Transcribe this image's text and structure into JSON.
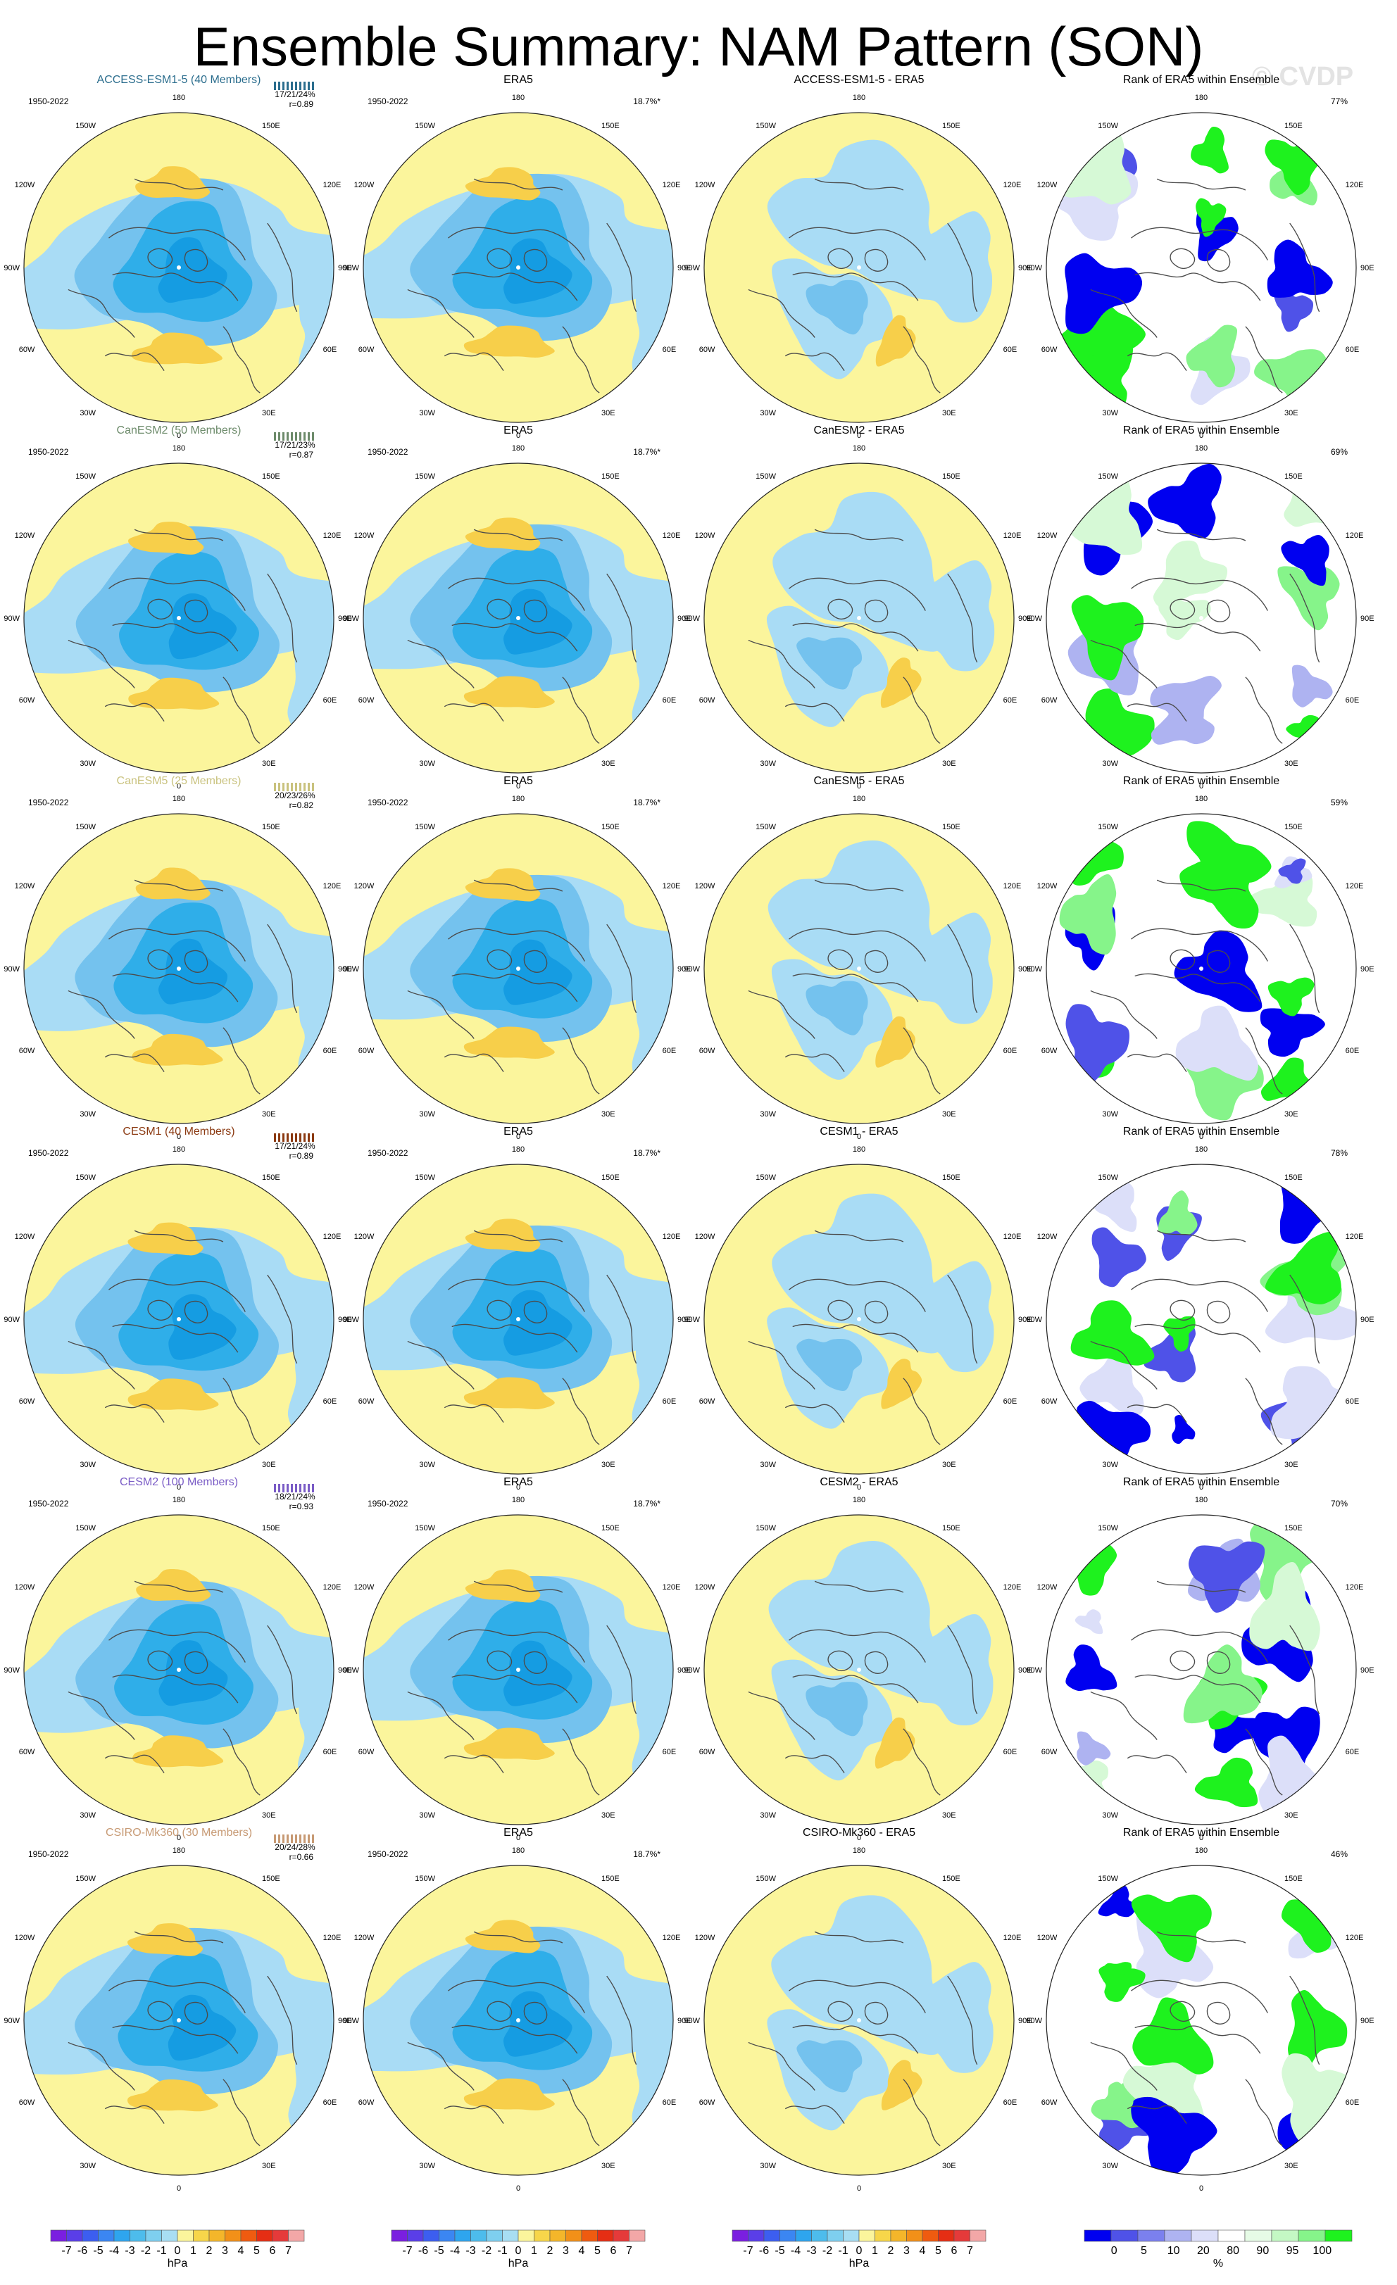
{
  "title": "Ensemble Summary: NAM Pattern (SON)",
  "watermark": "© CVDP",
  "colors": {
    "ocean_yellow": "#fbf59c",
    "neg_light": "#a9dcf5",
    "neg_mid": "#74c2ee",
    "neg_dark": "#2faee9",
    "neg_deep": "#159ce2",
    "pos_light": "#f7cf4a",
    "pos_mid": "#f4b72a",
    "coast": "#4b4b4b",
    "rank_low_dark": "#0000f0",
    "rank_low_mid": "#4f52e8",
    "rank_low_light": "#aeb3f1",
    "rank_low_faint": "#dcdff9",
    "rank_high_light": "#d6f9d6",
    "rank_high_mid": "#86f48a",
    "rank_high_dark": "#1ef21e"
  },
  "column_titles": {
    "obs": "ERA5",
    "rank": "Rank of ERA5 within Ensemble"
  },
  "period": "1950-2022",
  "obs_variance": "18.7%*",
  "longitude_labels": [
    "180",
    "150W",
    "150E",
    "120W",
    "120E",
    "90W",
    "90E",
    "60W",
    "60E",
    "30W",
    "30E",
    "0"
  ],
  "models": [
    {
      "name": "ACCESS-ESM1-5 (40 Members)",
      "diff": "ACCESS-ESM1-5 - ERA5",
      "color": "#2c6e8e",
      "stats": "17/21/24%",
      "r": "r=0.89",
      "rank_pct": "77%"
    },
    {
      "name": "CanESM2 (50 Members)",
      "diff": "CanESM2 - ERA5",
      "color": "#6d8b6b",
      "stats": "17/21/23%",
      "r": "r=0.87",
      "rank_pct": "69%"
    },
    {
      "name": "CanESM5 (25 Members)",
      "diff": "CanESM5 - ERA5",
      "color": "#c9c27e",
      "stats": "20/23/26%",
      "r": "r=0.82",
      "rank_pct": "59%"
    },
    {
      "name": "CESM1 (40 Members)",
      "diff": "CESM1 - ERA5",
      "color": "#8b3a12",
      "stats": "17/21/24%",
      "r": "r=0.89",
      "rank_pct": "78%"
    },
    {
      "name": "CESM2 (100 Members)",
      "diff": "CESM2 - ERA5",
      "color": "#7a5cc6",
      "stats": "18/21/24%",
      "r": "r=0.93",
      "rank_pct": "70%"
    },
    {
      "name": "CSIRO-Mk360 (30 Members)",
      "diff": "CSIRO-Mk360 - ERA5",
      "color": "#c79a74",
      "stats": "20/24/28%",
      "r": "r=0.66",
      "rank_pct": "46%"
    }
  ],
  "colorbar_hpa": {
    "labels": [
      "-7",
      "-6",
      "-5",
      "-4",
      "-3",
      "-2",
      "-1",
      "0",
      "1",
      "2",
      "3",
      "4",
      "5",
      "6",
      "7"
    ],
    "unit": "hPa",
    "colors": [
      "#7a1fe0",
      "#5a3ee8",
      "#3c5ef0",
      "#3b86f2",
      "#2ea5ee",
      "#4dbcec",
      "#7ecfef",
      "#a8def3",
      "#fbf59c",
      "#f7d64a",
      "#f4b62a",
      "#f29018",
      "#ef5b10",
      "#e52e14",
      "#e53a3a",
      "#f3a7a7"
    ]
  },
  "colorbar_rank": {
    "labels": [
      "0",
      "5",
      "10",
      "20",
      "80",
      "90",
      "95",
      "100"
    ],
    "unit": "%",
    "colors": [
      "#0000f0",
      "#4f52e8",
      "#7b80ee",
      "#aeb3f1",
      "#dcdff9",
      "#ffffff",
      "#e6fbe6",
      "#c4f8c4",
      "#86f48a",
      "#1ef21e"
    ]
  }
}
